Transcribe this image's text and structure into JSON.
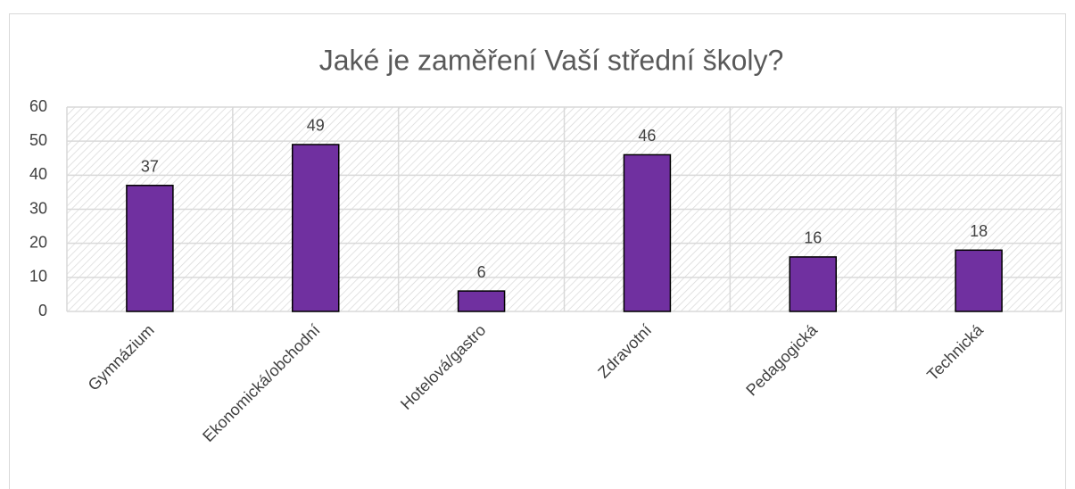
{
  "chart_data": {
    "type": "bar",
    "title": "Jaké je zaměření Vaší střední školy?",
    "categories": [
      "Gymnázium",
      "Ekonomická/obchodní",
      "Hotelová/gastro",
      "Zdravotní",
      "Pedagogická",
      "Technická"
    ],
    "values": [
      37,
      49,
      6,
      46,
      16,
      18
    ],
    "color": "#7030a0",
    "ylim": [
      0,
      60
    ],
    "yticks": [
      0,
      10,
      20,
      30,
      40,
      50,
      60
    ],
    "grid": true,
    "data_labels": true
  }
}
